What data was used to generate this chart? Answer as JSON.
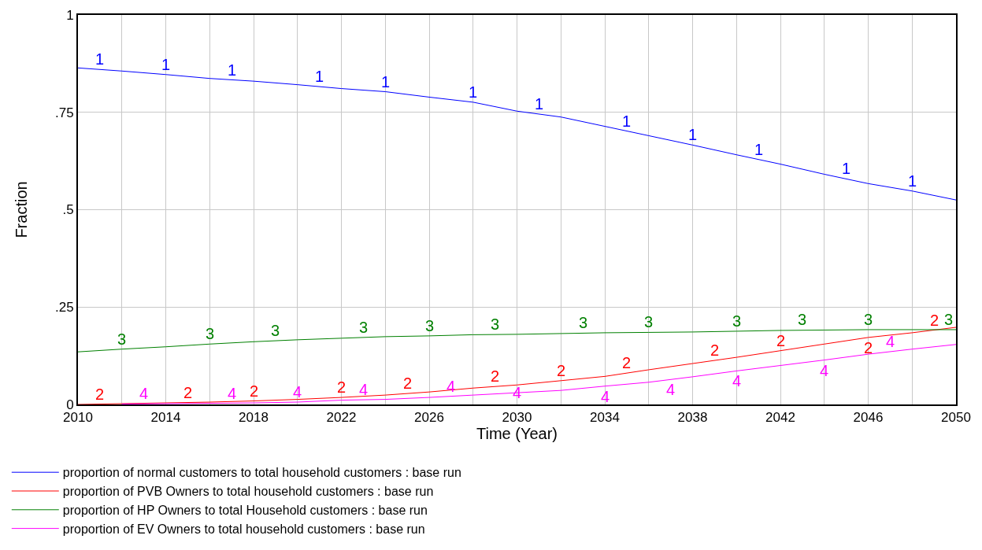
{
  "chart_data": {
    "type": "line",
    "xlabel": "Time (Year)",
    "ylabel": "Fraction",
    "x": [
      2010,
      2012,
      2014,
      2016,
      2018,
      2020,
      2022,
      2024,
      2026,
      2028,
      2030,
      2032,
      2034,
      2036,
      2038,
      2040,
      2042,
      2044,
      2046,
      2048,
      2050
    ],
    "series": [
      {
        "name": "proportion of normal customers to total household customers : base run",
        "color": "#0000ff",
        "values": [
          0.864,
          0.856,
          0.847,
          0.837,
          0.83,
          0.821,
          0.811,
          0.803,
          0.789,
          0.776,
          0.753,
          0.738,
          0.714,
          0.69,
          0.666,
          0.641,
          0.617,
          0.591,
          0.567,
          0.548,
          0.525
        ]
      },
      {
        "name": "proportion of PVB Owners to total household customers : base run",
        "color": "#ff0000",
        "values": [
          0,
          0.002,
          0.004,
          0.006,
          0.009,
          0.013,
          0.018,
          0.024,
          0.032,
          0.042,
          0.05,
          0.061,
          0.072,
          0.089,
          0.105,
          0.121,
          0.138,
          0.155,
          0.172,
          0.184,
          0.198
        ]
      },
      {
        "name": "proportion of HP Owners to total Household customers : base run",
        "color": "#008000",
        "values": [
          0.135,
          0.142,
          0.148,
          0.155,
          0.161,
          0.166,
          0.17,
          0.174,
          0.176,
          0.179,
          0.18,
          0.182,
          0.184,
          0.185,
          0.186,
          0.188,
          0.19,
          0.191,
          0.192,
          0.192,
          0.192
        ]
      },
      {
        "name": "proportion of EV Owners to total household customers : base run",
        "color": "#ff00ff",
        "values": [
          null,
          0.001,
          0.002,
          0.003,
          0.004,
          0.006,
          0.011,
          0.013,
          0.018,
          0.024,
          0.03,
          0.036,
          0.047,
          0.057,
          0.071,
          0.086,
          0.1,
          0.114,
          0.129,
          0.142,
          0.154
        ]
      }
    ],
    "xlim": [
      2010,
      2050
    ],
    "xticks": [
      2010,
      {
        "value": 2012,
        "label": null
      },
      2014,
      {
        "value": 2016,
        "label": null
      },
      2018,
      {
        "value": 2020,
        "label": null
      },
      2022,
      {
        "value": 2024,
        "label": null
      },
      2026,
      {
        "value": 2028,
        "label": null
      },
      2030,
      {
        "value": 2032,
        "label": null
      },
      2034,
      {
        "value": 2036,
        "label": null
      },
      2038,
      {
        "value": 2040,
        "label": null
      },
      2042,
      {
        "value": 2044,
        "label": null
      },
      2046,
      {
        "value": 2048,
        "label": null
      },
      2050
    ],
    "ylim": [
      0,
      1
    ],
    "yticks": [
      {
        "value": 0,
        "label": "0"
      },
      {
        "value": 0.25,
        "label": ".25"
      },
      {
        "value": 0.5,
        "label": ".5"
      },
      {
        "value": 0.75,
        "label": ".75"
      },
      {
        "value": 1,
        "label": "1"
      }
    ],
    "grid": true,
    "legend": "bottom",
    "line_style": "solid",
    "marker": "none",
    "annotations": [
      {
        "text": "1",
        "x": 2011,
        "y": 0.86
      },
      {
        "text": "1",
        "x": 2014,
        "y": 0.847
      },
      {
        "text": "1",
        "x": 2017,
        "y": 0.833
      },
      {
        "text": "1",
        "x": 2021,
        "y": 0.816
      },
      {
        "text": "1",
        "x": 2024,
        "y": 0.803
      },
      {
        "text": "1",
        "x": 2028,
        "y": 0.776
      },
      {
        "text": "1",
        "x": 2031,
        "y": 0.745
      },
      {
        "text": "1",
        "x": 2035,
        "y": 0.702
      },
      {
        "text": "1",
        "x": 2038,
        "y": 0.666
      },
      {
        "text": "1",
        "x": 2041,
        "y": 0.629
      },
      {
        "text": "1",
        "x": 2045,
        "y": 0.579
      },
      {
        "text": "1",
        "x": 2048,
        "y": 0.548
      },
      {
        "text": "2",
        "x": 2011,
        "y": 0.001
      },
      {
        "text": "2",
        "x": 2015,
        "y": 0.005
      },
      {
        "text": "2",
        "x": 2018,
        "y": 0.009
      },
      {
        "text": "2",
        "x": 2022,
        "y": 0.018
      },
      {
        "text": "2",
        "x": 2025,
        "y": 0.028
      },
      {
        "text": "2",
        "x": 2029,
        "y": 0.046
      },
      {
        "text": "2",
        "x": 2032,
        "y": 0.061
      },
      {
        "text": "2",
        "x": 2035,
        "y": 0.08
      },
      {
        "text": "2",
        "x": 2039,
        "y": 0.113
      },
      {
        "text": "2",
        "x": 2042,
        "y": 0.138
      },
      {
        "text": "2",
        "x": 2046,
        "y": 0.172
      },
      {
        "text": "2",
        "x": 2049,
        "y": 0.19
      },
      {
        "text": "3",
        "x": 2012,
        "y": 0.142
      },
      {
        "text": "3",
        "x": 2016,
        "y": 0.155
      },
      {
        "text": "3",
        "x": 2019,
        "y": 0.163
      },
      {
        "text": "3",
        "x": 2023,
        "y": 0.172
      },
      {
        "text": "3",
        "x": 2026,
        "y": 0.176
      },
      {
        "text": "3",
        "x": 2029,
        "y": 0.18
      },
      {
        "text": "3",
        "x": 2033,
        "y": 0.183
      },
      {
        "text": "3",
        "x": 2036,
        "y": 0.185
      },
      {
        "text": "3",
        "x": 2040,
        "y": 0.188
      },
      {
        "text": "3",
        "x": 2043,
        "y": 0.191
      },
      {
        "text": "3",
        "x": 2046,
        "y": 0.192
      },
      {
        "text": "3",
        "x": 2050,
        "y": 0.192
      },
      {
        "text": "4",
        "x": 2013,
        "y": 0.002
      },
      {
        "text": "4",
        "x": 2017,
        "y": 0.003
      },
      {
        "text": "4",
        "x": 2020,
        "y": 0.006
      },
      {
        "text": "4",
        "x": 2023,
        "y": 0.012
      },
      {
        "text": "4",
        "x": 2027,
        "y": 0.021
      },
      {
        "text": "4",
        "x": 2030,
        "y": 0.03
      },
      {
        "text": "4",
        "x": 2034,
        "y": 0.047
      },
      {
        "text": "4",
        "x": 2037,
        "y": 0.064
      },
      {
        "text": "4",
        "x": 2040,
        "y": 0.086
      },
      {
        "text": "4",
        "x": 2044,
        "y": 0.114
      },
      {
        "text": "4",
        "x": 2047,
        "y": 0.135
      }
    ]
  }
}
